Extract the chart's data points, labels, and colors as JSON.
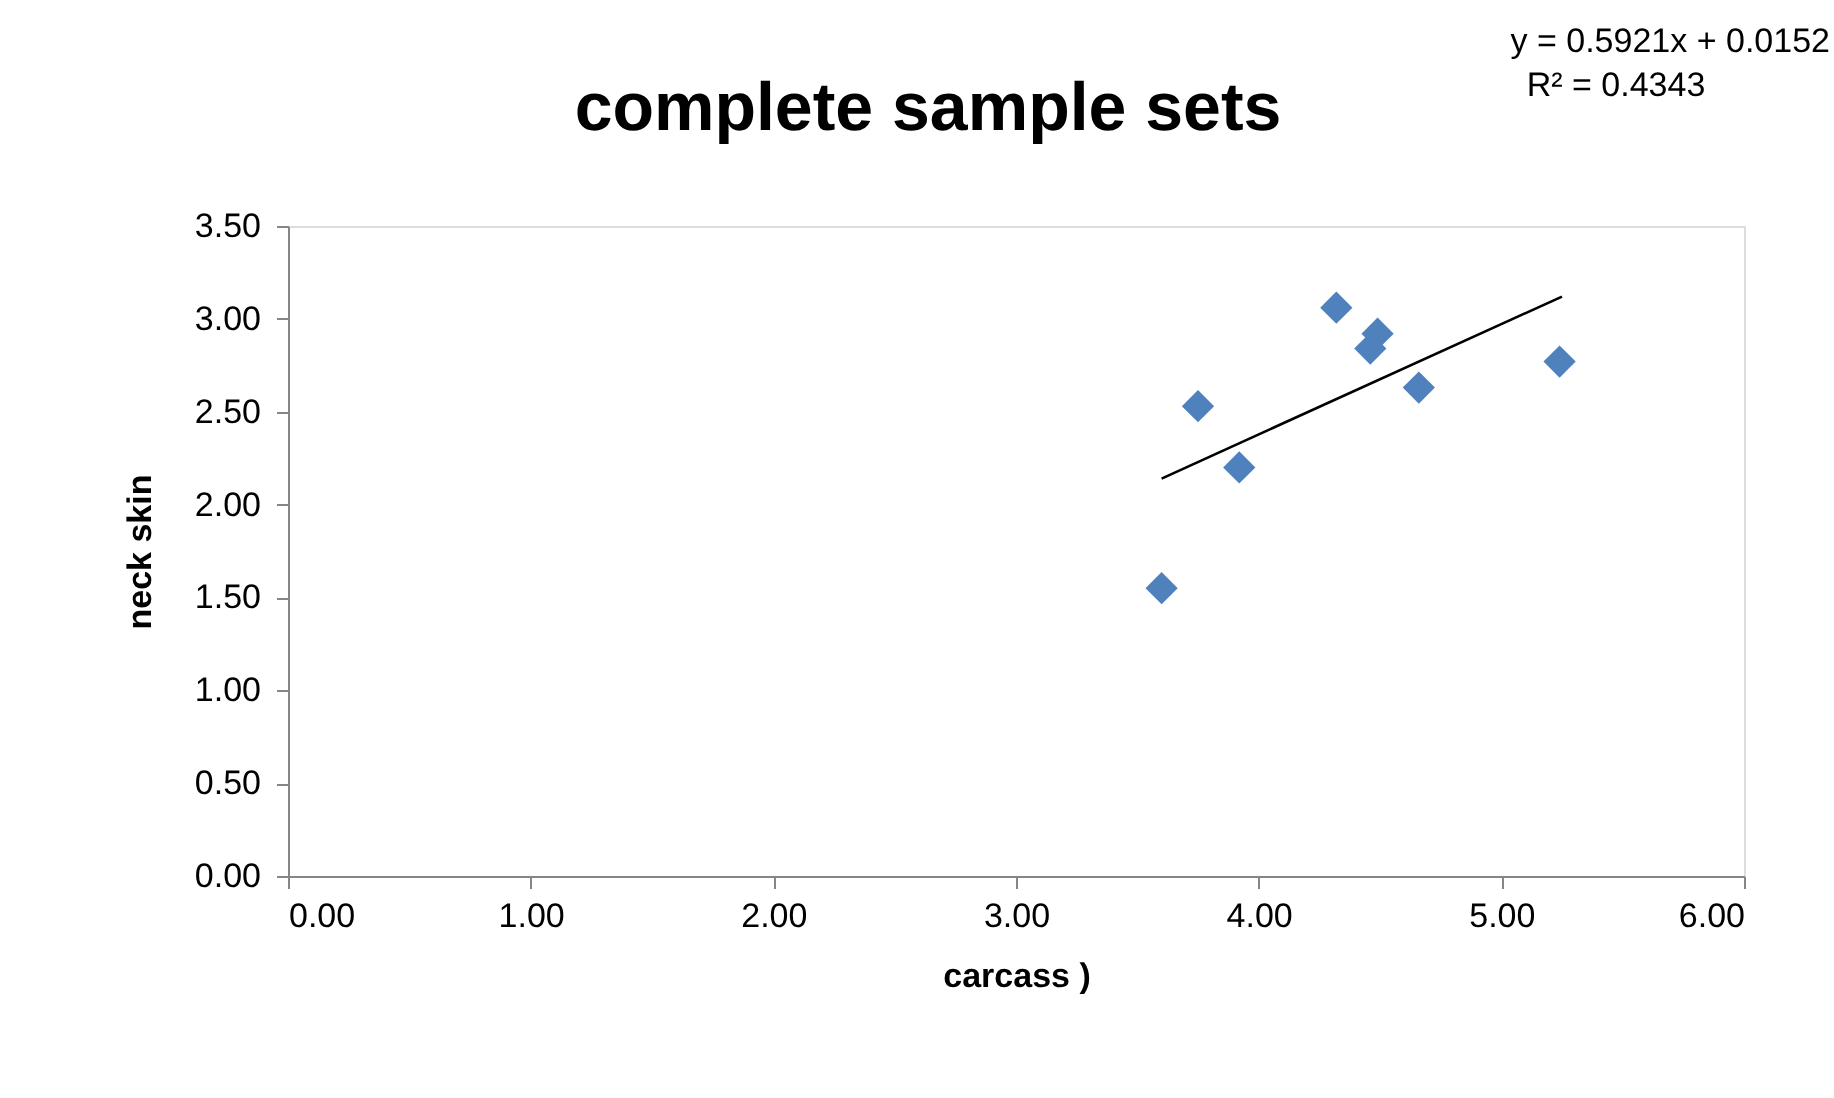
{
  "chart_data": {
    "type": "scatter",
    "title": "complete sample sets",
    "xlabel": "carcass )",
    "ylabel": "neck skin",
    "annotations": [
      "y = 0.5921x + 0.0152",
      "R² = 0.4343"
    ],
    "x": [
      3.6,
      3.75,
      3.92,
      4.32,
      4.46,
      4.49,
      4.66,
      5.24
    ],
    "series": [
      {
        "color": "#4f81bd",
        "values": [
          1.55,
          2.53,
          2.2,
          3.06,
          2.84,
          2.92,
          2.63,
          2.77
        ],
        "marker": "diamond"
      },
      {
        "type": "line",
        "color": "#000000",
        "x": [
          3.6,
          5.25
        ],
        "values": [
          2.14,
          3.12
        ]
      }
    ],
    "xlim": [
      0,
      6
    ],
    "ylim": [
      0,
      3.5
    ],
    "xticks": [
      {
        "value": 0,
        "label": "0.00"
      },
      {
        "value": 1,
        "label": "1.00"
      },
      {
        "value": 2,
        "label": "2.00"
      },
      {
        "value": 3,
        "label": "3.00"
      },
      {
        "value": 4,
        "label": "4.00"
      },
      {
        "value": 5,
        "label": "5.00"
      },
      {
        "value": 6,
        "label": "6.00"
      }
    ],
    "yticks": [
      {
        "value": 0,
        "label": "0.00"
      },
      {
        "value": 0.5,
        "label": "0.50"
      },
      {
        "value": 1,
        "label": "1.00"
      },
      {
        "value": 1.5,
        "label": "1.50"
      },
      {
        "value": 2,
        "label": "2.00"
      },
      {
        "value": 2.5,
        "label": "2.50"
      },
      {
        "value": 3,
        "label": "3.00"
      },
      {
        "value": 3.5,
        "label": "3.50"
      }
    ],
    "grid": false
  }
}
